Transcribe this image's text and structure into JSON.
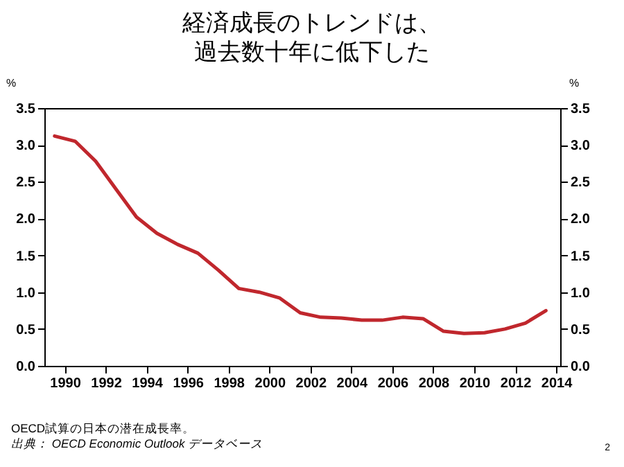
{
  "chart_data": {
    "type": "line",
    "title": "経済成長のトレンドは、過去数十年に低下した",
    "xlabel": null,
    "ylabel": "%",
    "y2label": "%",
    "x": [
      1989.5,
      1990.5,
      1991.5,
      1992.5,
      1993.5,
      1994.5,
      1995.5,
      1996.5,
      1997.5,
      1998.5,
      1999.5,
      2000.5,
      2001.5,
      2002.5,
      2003.5,
      2004.5,
      2005.5,
      2006.5,
      2007.5,
      2008.5,
      2009.5,
      2010.5,
      2011.5,
      2012.5,
      2013.5
    ],
    "series": [
      {
        "color": "#c0272d",
        "values": [
          3.12,
          3.05,
          2.78,
          2.4,
          2.02,
          1.8,
          1.65,
          1.53,
          1.3,
          1.05,
          1.0,
          0.92,
          0.72,
          0.66,
          0.65,
          0.62,
          0.62,
          0.66,
          0.64,
          0.47,
          0.44,
          0.45,
          0.5,
          0.58,
          0.75
        ]
      }
    ],
    "xlim": [
      1989,
      2014.2
    ],
    "xticks": [
      1990,
      1992,
      1994,
      1996,
      1998,
      2000,
      2002,
      2004,
      2006,
      2008,
      2010,
      2012,
      2014
    ],
    "ylim": [
      0,
      3.5
    ],
    "yticks": [
      {
        "value": 0,
        "label": "0.0"
      },
      0.5,
      {
        "value": 1,
        "label": "1.0"
      },
      1.5,
      {
        "value": 2,
        "label": "2.0"
      },
      2.5,
      {
        "value": 3,
        "label": "3.0"
      },
      3.5
    ],
    "y2lim": [
      0,
      3.5
    ],
    "y2ticks": [
      {
        "value": 0,
        "label": "0.0"
      },
      0.5,
      {
        "value": 1,
        "label": "1.0"
      },
      1.5,
      {
        "value": 2,
        "label": "2.0"
      },
      2.5,
      {
        "value": 3,
        "label": "3.0"
      },
      3.5
    ],
    "grid": false,
    "marker": "none",
    "line_style": "solid",
    "annotations": [
      "OECD試算の日本の潜在成長率。",
      "出典： OECD Economic Outlook データベース",
      "2"
    ]
  }
}
